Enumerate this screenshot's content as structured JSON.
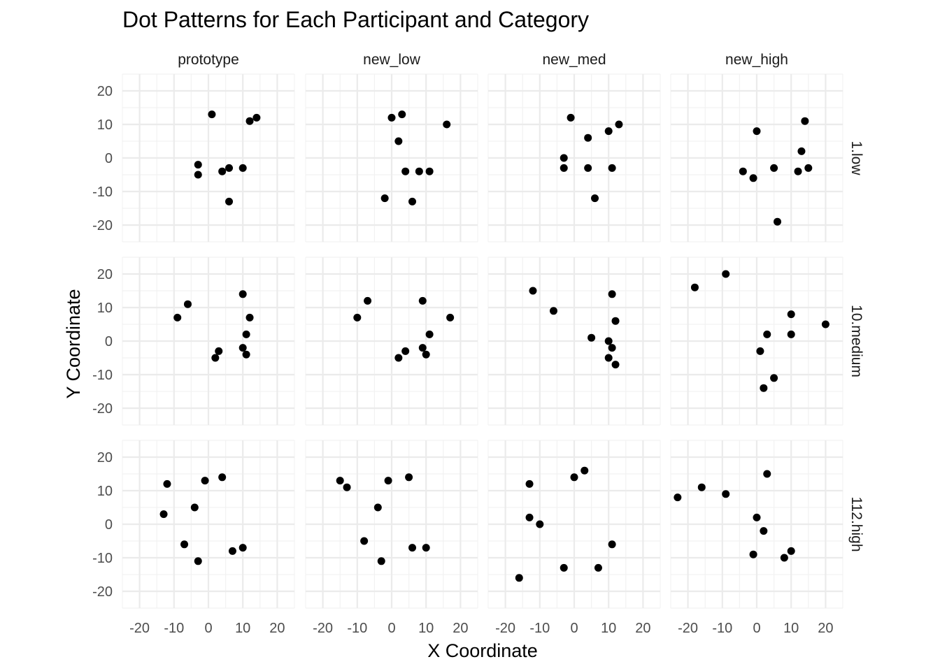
{
  "chart_data": {
    "type": "scatter",
    "title": "Dot Patterns for Each Participant and Category",
    "xlabel": "X Coordinate",
    "ylabel": "Y Coordinate",
    "xlim": [
      -25,
      25
    ],
    "ylim": [
      -25,
      25
    ],
    "x_ticks": [
      -20,
      -10,
      0,
      10,
      20
    ],
    "y_ticks": [
      -20,
      -10,
      0,
      10,
      20
    ],
    "x_tick_labels": [
      "-20",
      "-10",
      "0",
      "10",
      "20"
    ],
    "y_tick_labels": [
      "-20",
      "-10",
      "0",
      "10",
      "20"
    ],
    "columns": [
      "prototype",
      "new_low",
      "new_med",
      "new_high"
    ],
    "rows": [
      "1.low",
      "10.medium",
      "112.high"
    ],
    "grid": true,
    "panels": [
      [
        [
          [
            1,
            13
          ],
          [
            12,
            11
          ],
          [
            14,
            12
          ],
          [
            -3,
            -2
          ],
          [
            -3,
            -5
          ],
          [
            4,
            -4
          ],
          [
            6,
            -3
          ],
          [
            10,
            -3
          ],
          [
            6,
            -13
          ]
        ],
        [
          [
            0,
            12
          ],
          [
            3,
            13
          ],
          [
            16,
            10
          ],
          [
            2,
            5
          ],
          [
            4,
            -4
          ],
          [
            8,
            -4
          ],
          [
            11,
            -4
          ],
          [
            -2,
            -12
          ],
          [
            6,
            -13
          ]
        ],
        [
          [
            -1,
            12
          ],
          [
            13,
            10
          ],
          [
            4,
            6
          ],
          [
            10,
            8
          ],
          [
            -3,
            0
          ],
          [
            -3,
            -3
          ],
          [
            4,
            -3
          ],
          [
            11,
            -3
          ],
          [
            6,
            -12
          ]
        ],
        [
          [
            0,
            8
          ],
          [
            14,
            11
          ],
          [
            13,
            2
          ],
          [
            -4,
            -4
          ],
          [
            -1,
            -6
          ],
          [
            5,
            -3
          ],
          [
            12,
            -4
          ],
          [
            15,
            -3
          ],
          [
            6,
            -19
          ]
        ]
      ],
      [
        [
          [
            -6,
            11
          ],
          [
            -9,
            7
          ],
          [
            10,
            14
          ],
          [
            12,
            7
          ],
          [
            11,
            2
          ],
          [
            3,
            -3
          ],
          [
            10,
            -2
          ],
          [
            2,
            -5
          ],
          [
            11,
            -4
          ]
        ],
        [
          [
            -7,
            12
          ],
          [
            -10,
            7
          ],
          [
            9,
            12
          ],
          [
            17,
            7
          ],
          [
            11,
            2
          ],
          [
            4,
            -3
          ],
          [
            9,
            -2
          ],
          [
            2,
            -5
          ],
          [
            10,
            -4
          ]
        ],
        [
          [
            -12,
            15
          ],
          [
            -6,
            9
          ],
          [
            11,
            14
          ],
          [
            12,
            6
          ],
          [
            5,
            1
          ],
          [
            10,
            0
          ],
          [
            11,
            -2
          ],
          [
            10,
            -5
          ],
          [
            12,
            -7
          ]
        ],
        [
          [
            -18,
            16
          ],
          [
            -9,
            20
          ],
          [
            10,
            8
          ],
          [
            20,
            5
          ],
          [
            3,
            2
          ],
          [
            10,
            2
          ],
          [
            1,
            -3
          ],
          [
            5,
            -11
          ],
          [
            2,
            -14
          ]
        ]
      ],
      [
        [
          [
            -12,
            12
          ],
          [
            -1,
            13
          ],
          [
            4,
            14
          ],
          [
            -13,
            3
          ],
          [
            -4,
            5
          ],
          [
            -7,
            -6
          ],
          [
            -3,
            -11
          ],
          [
            7,
            -8
          ],
          [
            10,
            -7
          ]
        ],
        [
          [
            -15,
            13
          ],
          [
            -13,
            11
          ],
          [
            -1,
            13
          ],
          [
            5,
            14
          ],
          [
            -4,
            5
          ],
          [
            -8,
            -5
          ],
          [
            -3,
            -11
          ],
          [
            6,
            -7
          ],
          [
            10,
            -7
          ]
        ],
        [
          [
            -13,
            12
          ],
          [
            0,
            14
          ],
          [
            3,
            16
          ],
          [
            -13,
            2
          ],
          [
            -10,
            0
          ],
          [
            11,
            -6
          ],
          [
            -3,
            -13
          ],
          [
            7,
            -13
          ],
          [
            -16,
            -16
          ]
        ],
        [
          [
            -23,
            8
          ],
          [
            -16,
            11
          ],
          [
            -9,
            9
          ],
          [
            3,
            15
          ],
          [
            0,
            2
          ],
          [
            2,
            -2
          ],
          [
            -1,
            -9
          ],
          [
            8,
            -10
          ],
          [
            10,
            -8
          ]
        ]
      ]
    ]
  }
}
